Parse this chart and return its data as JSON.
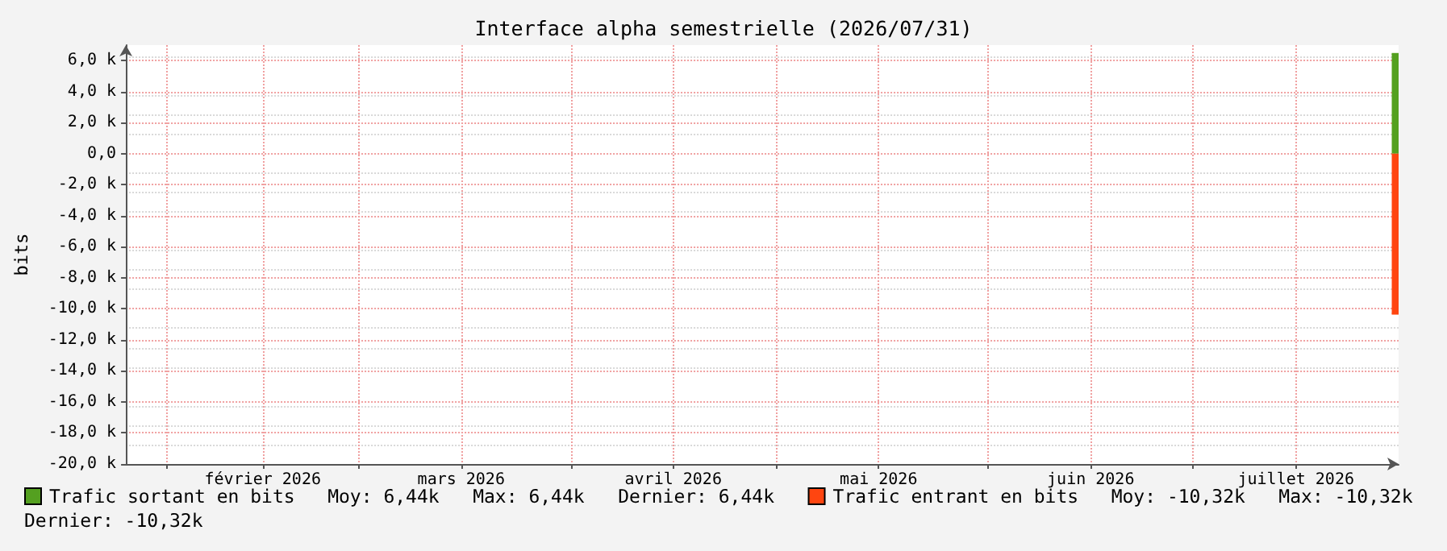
{
  "chart_data": {
    "type": "area",
    "title": "Interface alpha semestrielle (2026/07/31)",
    "ylabel": "bits",
    "x": [
      "2026-07-30",
      "2026-07-31"
    ],
    "series": [
      {
        "name": "Trafic sortant en bits",
        "color": "#54a020",
        "values": [
          6440,
          6440
        ]
      },
      {
        "name": "Trafic entrant en bits",
        "color": "#ff4510",
        "values": [
          -10320,
          -10320
        ]
      }
    ],
    "xlim": [
      "2026-01-26",
      "2026-07-31"
    ],
    "xticks": [
      {
        "value": "2026-02-01",
        "label": null
      },
      {
        "value": "2026-02-15",
        "label": "février 2026"
      },
      {
        "value": "2026-03-01",
        "label": null
      },
      {
        "value": "2026-03-16",
        "label": "mars 2026"
      },
      {
        "value": "2026-04-01",
        "label": null
      },
      {
        "value": "2026-04-16",
        "label": "avril 2026"
      },
      {
        "value": "2026-05-01",
        "label": null
      },
      {
        "value": "2026-05-16",
        "label": "mai 2026"
      },
      {
        "value": "2026-06-01",
        "label": null
      },
      {
        "value": "2026-06-16",
        "label": "juin 2026"
      },
      {
        "value": "2026-07-01",
        "label": null
      },
      {
        "value": "2026-07-16",
        "label": "juillet 2026"
      }
    ],
    "ylim": [
      -20000,
      7000
    ],
    "yticks": [
      {
        "value": -20000,
        "label": "-20,0 k"
      },
      {
        "value": -18000,
        "label": "-18,0 k"
      },
      {
        "value": -16000,
        "label": "-16,0 k"
      },
      {
        "value": -14000,
        "label": "-14,0 k"
      },
      {
        "value": -12000,
        "label": "-12,0 k"
      },
      {
        "value": -10000,
        "label": "-10,0 k"
      },
      {
        "value": -8000,
        "label": "-8,0 k"
      },
      {
        "value": -6000,
        "label": "-6,0 k"
      },
      {
        "value": -4000,
        "label": "-4,0 k"
      },
      {
        "value": -2000,
        "label": "-2,0 k"
      },
      {
        "value": 0,
        "label": "0,0"
      },
      {
        "value": 2000,
        "label": "2,0 k"
      },
      {
        "value": 4000,
        "label": "4,0 k"
      },
      {
        "value": 6000,
        "label": "6,0 k"
      }
    ],
    "grid": true,
    "legend": "bottom",
    "marker": "none",
    "line_style": "solid",
    "annotations": [
      "Moy: 6,44k",
      "Max: 6,44k",
      "Dernier: 6,44k",
      "Moy: -10,32k",
      "Max: -10,32k",
      "Dernier: -10,32k"
    ]
  }
}
